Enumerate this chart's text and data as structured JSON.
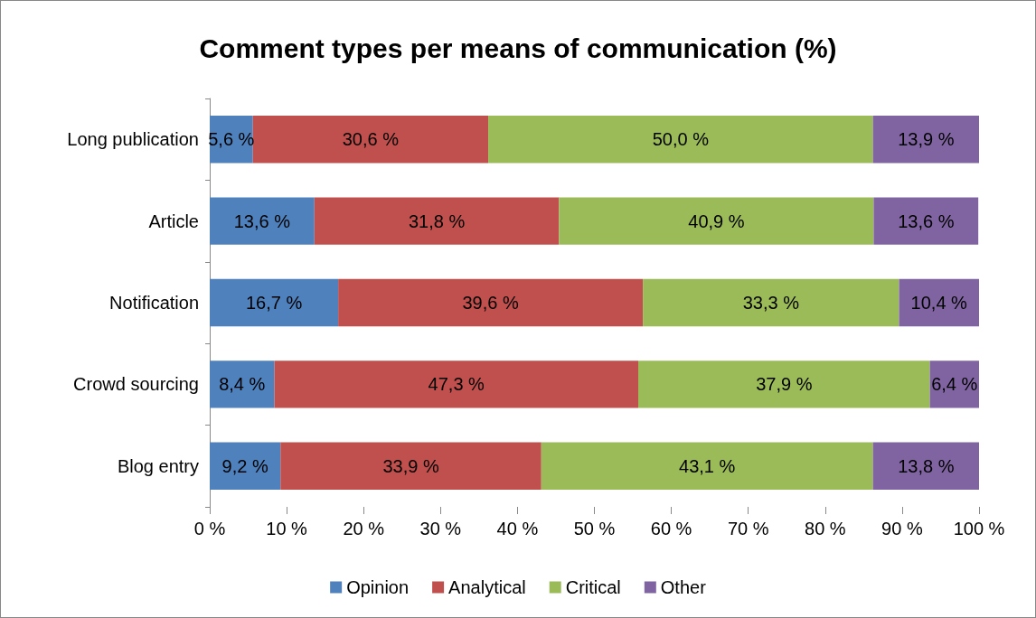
{
  "chart_data": {
    "type": "bar",
    "orientation": "horizontal",
    "stacked": true,
    "title": "Comment types per means of communication (%)",
    "categories": [
      "Long publication",
      "Article",
      "Notification",
      "Crowd sourcing",
      "Blog entry"
    ],
    "series": [
      {
        "name": "Opinion",
        "color": "#4f81bd",
        "values": [
          5.6,
          13.6,
          16.7,
          8.4,
          9.2
        ],
        "value_labels": [
          "5,6 %",
          "13,6 %",
          "16,7 %",
          "8,4 %",
          "9,2 %"
        ]
      },
      {
        "name": "Analytical",
        "color": "#c0504d",
        "values": [
          30.6,
          31.8,
          39.6,
          47.3,
          33.9
        ],
        "value_labels": [
          "30,6 %",
          "31,8 %",
          "39,6 %",
          "47,3 %",
          "33,9 %"
        ]
      },
      {
        "name": "Critical",
        "color": "#9bbb59",
        "values": [
          50.0,
          40.9,
          33.3,
          37.9,
          43.1
        ],
        "value_labels": [
          "50,0 %",
          "40,9 %",
          "33,3 %",
          "37,9 %",
          "43,1 %"
        ]
      },
      {
        "name": "Other",
        "color": "#8064a2",
        "values": [
          13.9,
          13.6,
          10.4,
          6.4,
          13.8
        ],
        "value_labels": [
          "13,9 %",
          "13,6 %",
          "10,4 %",
          "6,4 %",
          "13,8 %"
        ]
      }
    ],
    "xlim": [
      0,
      100
    ],
    "xticks": [
      {
        "value": 0,
        "label": "0 %"
      },
      {
        "value": 10,
        "label": "10 %"
      },
      {
        "value": 20,
        "label": "20 %"
      },
      {
        "value": 30,
        "label": "30 %"
      },
      {
        "value": 40,
        "label": "40 %"
      },
      {
        "value": 50,
        "label": "50 %"
      },
      {
        "value": 60,
        "label": "60 %"
      },
      {
        "value": 70,
        "label": "70 %"
      },
      {
        "value": 80,
        "label": "80 %"
      },
      {
        "value": 90,
        "label": "90 %"
      },
      {
        "value": 100,
        "label": "100 %"
      }
    ],
    "grid": false,
    "legend": "bottom"
  }
}
